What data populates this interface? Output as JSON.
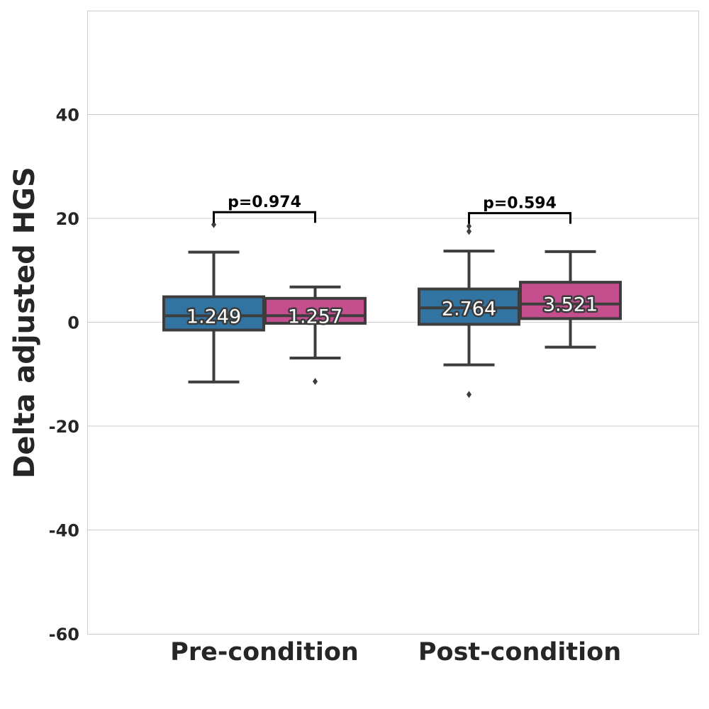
{
  "colors": {
    "series_a": "#3274a1",
    "series_b": "#c44e8e",
    "box_edge": "#3d3d3d",
    "grid": "#cccccc",
    "text": "#262626"
  },
  "chart_data": {
    "type": "box",
    "ylabel": "Delta adjusted HGS",
    "ylim": [
      -60,
      60
    ],
    "yticks": [
      -60,
      -40,
      -20,
      0,
      20,
      40
    ],
    "grid": true,
    "categories": [
      "Pre-condition",
      "Post-condition"
    ],
    "groups": [
      {
        "category": "Pre-condition",
        "boxes": [
          {
            "whisker_low": -11.5,
            "q1": -1.5,
            "median": 1.249,
            "q3": 4.9,
            "whisker_high": 13.5,
            "outliers": [
              18.8
            ],
            "median_label": "1.249"
          },
          {
            "whisker_low": -6.9,
            "q1": -0.2,
            "median": 1.257,
            "q3": 4.6,
            "whisker_high": 6.8,
            "outliers": [
              -11.4
            ],
            "median_label": "1.257"
          }
        ],
        "bracket_top": 21.2,
        "pvalue": "p=0.974"
      },
      {
        "category": "Post-condition",
        "boxes": [
          {
            "whisker_low": -8.2,
            "q1": -0.4,
            "median": 2.764,
            "q3": 6.4,
            "whisker_high": 13.7,
            "outliers": [
              18.5,
              17.5,
              -13.9
            ],
            "median_label": "2.764"
          },
          {
            "whisker_low": -4.8,
            "q1": 0.7,
            "median": 3.521,
            "q3": 7.7,
            "whisker_high": 13.6,
            "outliers": [],
            "median_label": "3.521"
          }
        ],
        "bracket_top": 21.0,
        "pvalue": "p=0.594"
      }
    ]
  }
}
